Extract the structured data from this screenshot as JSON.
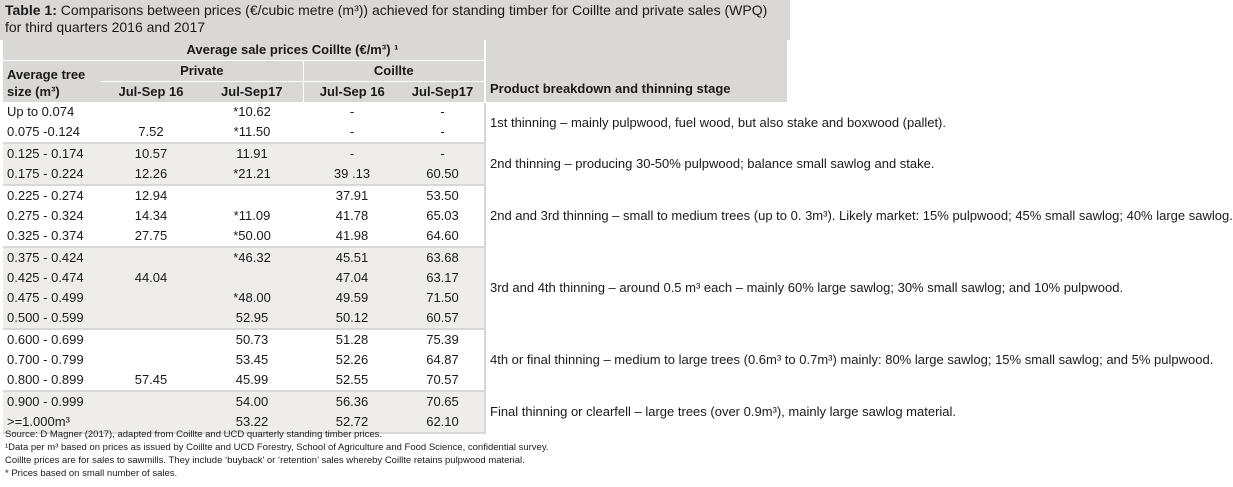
{
  "title": {
    "label": "Table 1:",
    "text": "Comparisons between prices (€/cubic metre (m³)) achieved for standing timber for Coillte and private sales (WPQ) for third quarters 2016 and 2017"
  },
  "header": {
    "avg_sale": "Average sale prices Coillte (€/m³) ¹",
    "private": "Private",
    "coillte": "Coillte",
    "size_line1": "Average tree",
    "size_line2": "size (m³)",
    "col_p16": "Jul-Sep 16",
    "col_p17": "Jul-Sep17",
    "col_c16": "Jul-Sep 16",
    "col_c17": "Jul-Sep17",
    "product": "Product breakdown and thinning stage"
  },
  "rows": [
    {
      "size": "Up to 0.074",
      "p16": "",
      "p17": "*10.62",
      "c16": "-",
      "c17": "-"
    },
    {
      "size": "0.075 -0.124",
      "p16": "7.52",
      "p17": "*11.50",
      "c16": "-",
      "c17": "-"
    },
    {
      "size": "0.125 - 0.174",
      "p16": "10.57",
      "p17": "11.91",
      "c16": "-",
      "c17": "-"
    },
    {
      "size": "0.175 - 0.224",
      "p16": "12.26",
      "p17": "*21.21",
      "c16": "39 .13",
      "c17": "60.50"
    },
    {
      "size": "0.225 - 0.274",
      "p16": "12.94",
      "p17": "",
      "c16": "37.91",
      "c17": "53.50"
    },
    {
      "size": "0.275 - 0.324",
      "p16": "14.34",
      "p17": "*11.09",
      "c16": "41.78",
      "c17": "65.03"
    },
    {
      "size": "0.325 - 0.374",
      "p16": "27.75",
      "p17": "*50.00",
      "c16": "41.98",
      "c17": "64.60"
    },
    {
      "size": "0.375 - 0.424",
      "p16": "",
      "p17": "*46.32",
      "c16": "45.51",
      "c17": "63.68"
    },
    {
      "size": "0.425 - 0.474",
      "p16": "44.04",
      "p17": "",
      "c16": "47.04",
      "c17": "63.17"
    },
    {
      "size": "0.475 - 0.499",
      "p16": "",
      "p17": "*48.00",
      "c16": "49.59",
      "c17": "71.50"
    },
    {
      "size": "0.500 - 0.599",
      "p16": "",
      "p17": "52.95",
      "c16": "50.12",
      "c17": "60.57"
    },
    {
      "size": "0.600 - 0.699",
      "p16": "",
      "p17": "50.73",
      "c16": "51.28",
      "c17": "75.39"
    },
    {
      "size": "0.700 - 0.799",
      "p16": "",
      "p17": "53.45",
      "c16": "52.26",
      "c17": "64.87"
    },
    {
      "size": "0.800 - 0.899",
      "p16": "57.45",
      "p17": "45.99",
      "c16": "52.55",
      "c17": "70.57"
    },
    {
      "size": "0.900 - 0.999",
      "p16": "",
      "p17": "54.00",
      "c16": "56.36",
      "c17": "70.65"
    },
    {
      "size": ">=1.000m³",
      "p16": "",
      "p17": "53.22",
      "c16": "52.72",
      "c17": "62.10"
    }
  ],
  "products": [
    "1st thinning – mainly pulpwood, fuel wood, but also stake and boxwood (pallet).",
    "2nd thinning – producing 30-50% pulpwood; balance small sawlog and stake.",
    "2nd and 3rd thinning – small to medium trees (up to 0. 3m³). Likely market: 15% pulpwood; 45% small sawlog; 40% large sawlog.",
    "3rd and 4th thinning – around 0.5 m³ each – mainly 60% large sawlog; 30% small sawlog; and 10% pulpwood.",
    "4th or final thinning – medium to large trees (0.6m³ to 0.7m³) mainly: 80% large sawlog; 15% small sawlog; and 5% pulpwood.",
    "Final thinning or clearfell – large trees (over 0.9m³), mainly large sawlog material."
  ],
  "footnotes": [
    "Source: D Magner (2017), adapted from Coillte and UCD quarterly standing timber prices.",
    "¹Data per m³ based on prices as issued by Coillte and UCD Forestry, School of Agriculture and Food Science, confidential survey.",
    "Coillte prices are for sales to sawmills. They include ‘buyback’ or ‘retention’ sales whereby Coillte retains pulpwood material.",
    "* Prices based on small number of sales."
  ],
  "colors": {
    "header_bg": "#dad8d6",
    "band_grey": "#eeedec",
    "band_white": "#ffffff"
  }
}
